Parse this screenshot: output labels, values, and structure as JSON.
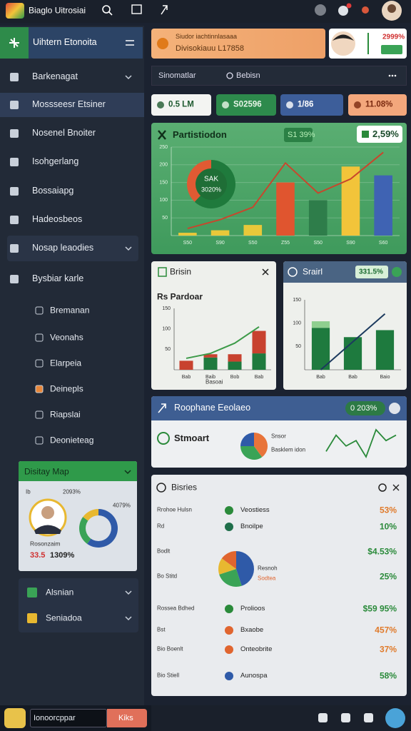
{
  "topbar": {
    "title": "Biaglo Uitrosiai"
  },
  "sidebar": {
    "header": "Uihtern Etonoita",
    "menu": [
      "Barkenagat",
      "Mossseesr Etsiner",
      "Nosenel Bnoiter",
      "Isohgerlang",
      "Bossaiapg",
      "Hadeosbeos",
      "Nosap leaodies",
      "Bysbiar karle"
    ],
    "submenu": [
      "Bremanan",
      "Veonahs",
      "Elarpeia",
      "Deinepls",
      "Riapslai",
      "Deonieteag"
    ],
    "map_card": {
      "title": "Disitay Map",
      "label": "Ib",
      "value_a": "2093%",
      "value_b": "4079%",
      "name": "Rosonzaim",
      "stat_a": "33.5",
      "stat_b": "1309%",
      "donut": {
        "values": [
          60,
          25,
          15
        ],
        "colors": [
          "#2f5aa8",
          "#3aa356",
          "#e8b830"
        ]
      }
    },
    "footer": [
      "Alsnian",
      "Seniadoa"
    ]
  },
  "bottombar": {
    "input": "Ionoorcppar",
    "button": "Kiks"
  },
  "banner": {
    "line1": "Siudor iachtinnlasaaa",
    "line2": "Divisokiauu L17858"
  },
  "profile": {
    "stat": "2999%"
  },
  "search": {
    "placeholder": "Sinomatlar",
    "filter": "Bebisn"
  },
  "chips": [
    "0.5 LM",
    "S02596",
    "1/86",
    "11.08%"
  ],
  "main_chart": {
    "title": "Partistiodon",
    "badge": "S1 39%",
    "badge_alt": "2,59%",
    "donut_label": "SAK",
    "donut_value": "3020%",
    "donut": {
      "values": [
        62,
        38
      ],
      "colors": [
        "#1f7a3c",
        "#e05a33"
      ]
    },
    "categories": [
      "S50",
      "S90",
      "S50",
      "Z55",
      "S50",
      "S90",
      "S60"
    ],
    "ylim": [
      0,
      250
    ],
    "yticks": [
      50,
      100,
      150,
      200,
      250
    ],
    "grid": true,
    "series": [
      {
        "values": [
          8,
          15,
          30,
          150,
          100,
          195,
          170
        ],
        "colors": [
          "#e8c83a",
          "#e8c83a",
          "#e8c83a",
          "#e0552f",
          "#2e7d4a",
          "#f2c43a",
          "#3f63b3"
        ]
      }
    ],
    "line": [
      20,
      45,
      80,
      205,
      120,
      160,
      235
    ],
    "line_color": "#c8462c"
  },
  "left_chart": {
    "title": "Brisin",
    "subtitle": "Rs Pardoar",
    "categories": [
      "Bab",
      "Baib",
      "Bob",
      "Bab"
    ],
    "xlabel": "Basoai",
    "ylim": [
      0,
      150
    ],
    "yticks": [
      50,
      100,
      150
    ],
    "grid": false,
    "series": [
      {
        "color": "#1e7a3e",
        "values": [
          0,
          30,
          20,
          40
        ]
      },
      {
        "color": "#c8422f",
        "values": [
          22,
          8,
          18,
          55
        ]
      }
    ],
    "line": [
      28,
      40,
      65,
      105
    ],
    "line_color": "#3c9a48"
  },
  "right_chart": {
    "title": "Srairl",
    "badge": "331.5%",
    "categories": [
      "Bab",
      "Bab",
      "Baio"
    ],
    "ylim": [
      0,
      150
    ],
    "yticks": [
      50,
      100,
      150
    ],
    "grid": false,
    "series": [
      {
        "color": "#1e7a3e",
        "values": [
          90,
          70,
          85
        ]
      },
      {
        "color": "#8fcf8f",
        "values": [
          14,
          0,
          0
        ]
      }
    ],
    "line": [
      0,
      60,
      120
    ],
    "line_color": "#1c3a5e"
  },
  "summary_card": {
    "title": "Roophane Eeolaeo",
    "badge": "0 203%",
    "label": "Stmoart",
    "pie": {
      "values": [
        40,
        35,
        25
      ],
      "colors": [
        "#e8743a",
        "#3aa356",
        "#2f5aa8"
      ]
    },
    "pie_labels": [
      "Snsor",
      "Basklem idon"
    ],
    "spark": [
      3,
      6,
      4,
      5,
      2,
      7,
      5,
      6
    ]
  },
  "list_card": {
    "title": "Bisries",
    "rows": [
      {
        "left": "Rrohoe Hulsn",
        "name": "Veostiess",
        "value": "53%",
        "color": "#e07a2a"
      },
      {
        "left": "Rd",
        "name": "Bnoilpe",
        "value": "10%",
        "color": "#2a8a3a"
      },
      {
        "left": "Bodlt",
        "value": "$4.53%",
        "color": "#2a8a3a"
      },
      {
        "left": "Bo Stitd",
        "value": "25%",
        "color": "#2a8a3a"
      },
      {
        "left": "Rossea Bdhed",
        "name": "Prolioos",
        "value": "$59 95%",
        "color": "#2a8a3a"
      },
      {
        "left": "Bst",
        "name": "Bxaobe",
        "value": "457%",
        "color": "#e07a2a"
      },
      {
        "left": "Bio Boenlt",
        "name": "Onteobrite",
        "value": "37%",
        "color": "#e07a2a"
      },
      {
        "left": "Bio Stiell",
        "name": "Aunospa",
        "value": "58%",
        "color": "#2a8a3a"
      }
    ],
    "pie": {
      "values": [
        45,
        25,
        15,
        15
      ],
      "colors": [
        "#2f5aa8",
        "#3aa356",
        "#e8b830",
        "#e0652f"
      ]
    },
    "pie_labels": [
      "Resnoh",
      "Sodtea"
    ]
  }
}
